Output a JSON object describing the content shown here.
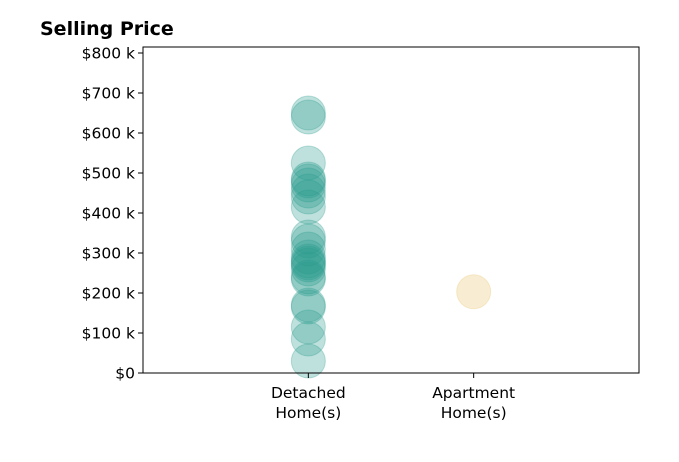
{
  "chart_data": {
    "type": "scatter",
    "title": "Selling Price",
    "xlabel": "",
    "ylabel": "",
    "categories": [
      "Detached\nHome(s)",
      "Apartment\nHome(s)"
    ],
    "xlim": [
      -1,
      2
    ],
    "ylim": [
      0,
      815000
    ],
    "yticks": [
      0,
      100000,
      200000,
      300000,
      400000,
      500000,
      600000,
      700000,
      800000
    ],
    "ytick_labels": [
      "$0",
      "$100 k",
      "$200 k",
      "$300 k",
      "$400 k",
      "$500 k",
      "$600 k",
      "$700 k",
      "$800 k"
    ],
    "grid": false,
    "legend": "none",
    "series": [
      {
        "category_index": 0,
        "color": "#2a9d8f",
        "opacity": 0.3,
        "values": [
          30000,
          85000,
          115000,
          165000,
          170000,
          235000,
          240000,
          260000,
          270000,
          275000,
          280000,
          290000,
          310000,
          330000,
          340000,
          415000,
          440000,
          455000,
          470000,
          480000,
          485000,
          525000,
          640000,
          650000
        ]
      },
      {
        "category_index": 1,
        "color": "#e9c46a",
        "opacity": 0.3,
        "values": [
          203000
        ]
      }
    ]
  }
}
